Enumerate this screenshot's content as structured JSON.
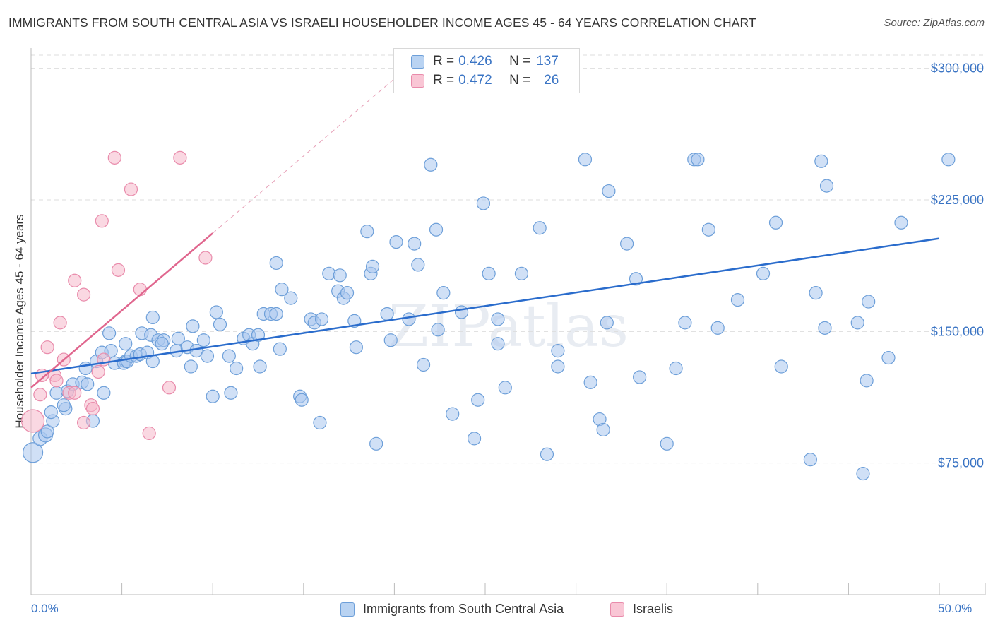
{
  "title": "IMMIGRANTS FROM SOUTH CENTRAL ASIA VS ISRAELI HOUSEHOLDER INCOME AGES 45 - 64 YEARS CORRELATION CHART",
  "source": "Source: ZipAtlas.com",
  "watermark": "ZIPatlas",
  "legend": {
    "blue": {
      "r_label": "R = ",
      "r_value": "0.426",
      "n_label": "N = ",
      "n_value": "137"
    },
    "pink": {
      "r_label": "R = ",
      "r_value": "0.472",
      "n_label": "N = ",
      "n_value": "26"
    }
  },
  "colors": {
    "blue_fill": "#a9c7ee",
    "blue_stroke": "#6d9fd9",
    "blue_line": "#2a6ccc",
    "pink_fill": "#f6b8cb",
    "pink_stroke": "#e98bab",
    "pink_line": "#e0668e",
    "tick_text": "#3a74c4",
    "grid": "#dddddd"
  },
  "chart_data": {
    "type": "scatter",
    "title": "IMMIGRANTS FROM SOUTH CENTRAL ASIA VS ISRAELI HOUSEHOLDER INCOME AGES 45 - 64 YEARS CORRELATION CHART",
    "xlabel": "",
    "ylabel": "Householder Income Ages 45 - 64 years",
    "xlim": [
      0,
      50
    ],
    "ylim": [
      0,
      307500
    ],
    "x_tick_labels": [
      "0.0%",
      "50.0%"
    ],
    "y_ticks": [
      75000,
      150000,
      225000,
      300000
    ],
    "y_tick_labels": [
      "$75,000",
      "$150,000",
      "$225,000",
      "$300,000"
    ],
    "series": [
      {
        "name": "Immigrants from South Central Asia",
        "color": "blue",
        "trend": {
          "x": [
            0,
            50
          ],
          "y": [
            126000,
            203000
          ]
        },
        "points": [
          [
            0.1,
            81000,
            14
          ],
          [
            0.5,
            89000,
            10
          ],
          [
            0.8,
            91000,
            10
          ],
          [
            0.9,
            93000,
            9
          ],
          [
            1.2,
            99000,
            9
          ],
          [
            1.1,
            104000,
            9
          ],
          [
            1.9,
            106000,
            9
          ],
          [
            1.4,
            115000,
            9
          ],
          [
            2.0,
            116000,
            9
          ],
          [
            2.3,
            120000,
            9
          ],
          [
            1.8,
            108000,
            9
          ],
          [
            3.4,
            99000,
            9
          ],
          [
            2.8,
            121000,
            9
          ],
          [
            3.1,
            120000,
            9
          ],
          [
            4.0,
            115000,
            9
          ],
          [
            3.0,
            129000,
            9
          ],
          [
            3.6,
            133000,
            9
          ],
          [
            3.9,
            138000,
            9
          ],
          [
            4.4,
            139000,
            9
          ],
          [
            4.6,
            132000,
            9
          ],
          [
            5.2,
            133000,
            9
          ],
          [
            5.1,
            132000,
            9
          ],
          [
            5.3,
            133000,
            9
          ],
          [
            5.5,
            136000,
            9
          ],
          [
            5.8,
            136000,
            9
          ],
          [
            6.0,
            137000,
            9
          ],
          [
            6.4,
            138000,
            9
          ],
          [
            6.7,
            133000,
            9
          ],
          [
            4.3,
            149000,
            9
          ],
          [
            5.2,
            143000,
            9
          ],
          [
            6.1,
            149000,
            9
          ],
          [
            6.7,
            158000,
            9
          ],
          [
            6.6,
            148000,
            9
          ],
          [
            7.0,
            145000,
            9
          ],
          [
            7.3,
            145000,
            9
          ],
          [
            7.2,
            143000,
            9
          ],
          [
            8.0,
            139000,
            9
          ],
          [
            8.1,
            146000,
            9
          ],
          [
            8.6,
            141000,
            9
          ],
          [
            8.8,
            130000,
            9
          ],
          [
            8.9,
            153000,
            9
          ],
          [
            9.1,
            139000,
            9
          ],
          [
            9.5,
            145000,
            9
          ],
          [
            9.7,
            136000,
            9
          ],
          [
            10.0,
            113000,
            9
          ],
          [
            10.2,
            161000,
            9
          ],
          [
            10.4,
            154000,
            9
          ],
          [
            10.9,
            136000,
            9
          ],
          [
            11.3,
            129000,
            9
          ],
          [
            11.0,
            115000,
            9
          ],
          [
            11.7,
            146000,
            9
          ],
          [
            12.0,
            148000,
            9
          ],
          [
            12.2,
            143000,
            9
          ],
          [
            12.6,
            130000,
            9
          ],
          [
            12.5,
            148000,
            9
          ],
          [
            12.8,
            160000,
            9
          ],
          [
            13.2,
            160000,
            9
          ],
          [
            13.5,
            160000,
            9
          ],
          [
            13.7,
            140000,
            9
          ],
          [
            13.5,
            189000,
            9
          ],
          [
            13.8,
            174000,
            9
          ],
          [
            14.3,
            169000,
            9
          ],
          [
            14.8,
            113000,
            9
          ],
          [
            14.9,
            111000,
            9
          ],
          [
            15.4,
            157000,
            9
          ],
          [
            15.6,
            155000,
            9
          ],
          [
            16.0,
            157000,
            9
          ],
          [
            15.9,
            98000,
            9
          ],
          [
            16.4,
            183000,
            9
          ],
          [
            16.9,
            173000,
            9
          ],
          [
            17.0,
            182000,
            9
          ],
          [
            17.2,
            169000,
            9
          ],
          [
            17.4,
            172000,
            9
          ],
          [
            17.8,
            156000,
            9
          ],
          [
            17.9,
            141000,
            9
          ],
          [
            18.5,
            207000,
            9
          ],
          [
            18.7,
            183000,
            9
          ],
          [
            18.8,
            187000,
            9
          ],
          [
            19.0,
            86000,
            9
          ],
          [
            19.6,
            160000,
            9
          ],
          [
            19.8,
            145000,
            9
          ],
          [
            20.1,
            201000,
            9
          ],
          [
            21.1,
            200000,
            9
          ],
          [
            20.8,
            157000,
            9
          ],
          [
            21.3,
            188000,
            9
          ],
          [
            21.6,
            131000,
            9
          ],
          [
            22.0,
            245000,
            9
          ],
          [
            22.3,
            208000,
            9
          ],
          [
            22.4,
            151000,
            9
          ],
          [
            22.7,
            172000,
            9
          ],
          [
            23.2,
            103000,
            9
          ],
          [
            23.7,
            161000,
            9
          ],
          [
            24.4,
            89000,
            9
          ],
          [
            24.6,
            111000,
            9
          ],
          [
            24.9,
            223000,
            9
          ],
          [
            25.2,
            183000,
            9
          ],
          [
            25.7,
            157000,
            9
          ],
          [
            25.7,
            143000,
            9
          ],
          [
            26.1,
            118000,
            9
          ],
          [
            27.0,
            183000,
            9
          ],
          [
            28.0,
            209000,
            9
          ],
          [
            28.4,
            80000,
            9
          ],
          [
            29.0,
            130000,
            9
          ],
          [
            29.0,
            139000,
            9
          ],
          [
            30.5,
            248000,
            9
          ],
          [
            30.8,
            121000,
            9
          ],
          [
            31.3,
            100000,
            9
          ],
          [
            31.5,
            94000,
            9
          ],
          [
            31.7,
            155000,
            9
          ],
          [
            31.8,
            230000,
            9
          ],
          [
            32.8,
            200000,
            9
          ],
          [
            33.3,
            180000,
            9
          ],
          [
            33.5,
            124000,
            9
          ],
          [
            35.0,
            86000,
            9
          ],
          [
            35.5,
            129000,
            9
          ],
          [
            36.0,
            155000,
            9
          ],
          [
            36.5,
            248000,
            9
          ],
          [
            36.7,
            248000,
            9
          ],
          [
            37.3,
            208000,
            9
          ],
          [
            37.8,
            152000,
            9
          ],
          [
            38.9,
            168000,
            9
          ],
          [
            40.3,
            183000,
            9
          ],
          [
            41.0,
            212000,
            9
          ],
          [
            41.3,
            130000,
            9
          ],
          [
            42.9,
            77000,
            9
          ],
          [
            43.5,
            247000,
            9
          ],
          [
            43.8,
            233000,
            9
          ],
          [
            43.2,
            172000,
            9
          ],
          [
            43.7,
            152000,
            9
          ],
          [
            45.8,
            69000,
            9
          ],
          [
            45.5,
            155000,
            9
          ],
          [
            46.1,
            167000,
            9
          ],
          [
            46.0,
            122000,
            9
          ],
          [
            47.2,
            135000,
            9
          ],
          [
            47.9,
            212000,
            9
          ],
          [
            50.5,
            248000,
            9
          ]
        ]
      },
      {
        "name": "Israelis",
        "color": "pink",
        "trend": {
          "x": [
            0,
            10
          ],
          "y": [
            118000,
            206000
          ]
        },
        "points": [
          [
            0.1,
            99000,
            16
          ],
          [
            0.5,
            114000,
            9
          ],
          [
            0.6,
            125000,
            9
          ],
          [
            0.9,
            141000,
            9
          ],
          [
            1.3,
            125000,
            9
          ],
          [
            1.4,
            122000,
            9
          ],
          [
            1.6,
            155000,
            9
          ],
          [
            1.8,
            134000,
            9
          ],
          [
            2.1,
            115000,
            9
          ],
          [
            2.4,
            179000,
            9
          ],
          [
            2.4,
            115000,
            9
          ],
          [
            2.9,
            98000,
            9
          ],
          [
            2.9,
            171000,
            9
          ],
          [
            3.3,
            108000,
            9
          ],
          [
            3.4,
            106000,
            9
          ],
          [
            3.7,
            127000,
            9
          ],
          [
            3.9,
            213000,
            9
          ],
          [
            4.0,
            134000,
            9
          ],
          [
            4.6,
            249000,
            9
          ],
          [
            4.8,
            185000,
            9
          ],
          [
            5.5,
            231000,
            9
          ],
          [
            6.0,
            174000,
            9
          ],
          [
            6.5,
            92000,
            9
          ],
          [
            7.6,
            118000,
            9
          ],
          [
            8.2,
            249000,
            9
          ],
          [
            9.6,
            192000,
            9
          ]
        ]
      }
    ]
  },
  "bottom_legend": {
    "blue_label": "Immigrants from South Central Asia",
    "pink_label": "Israelis"
  }
}
